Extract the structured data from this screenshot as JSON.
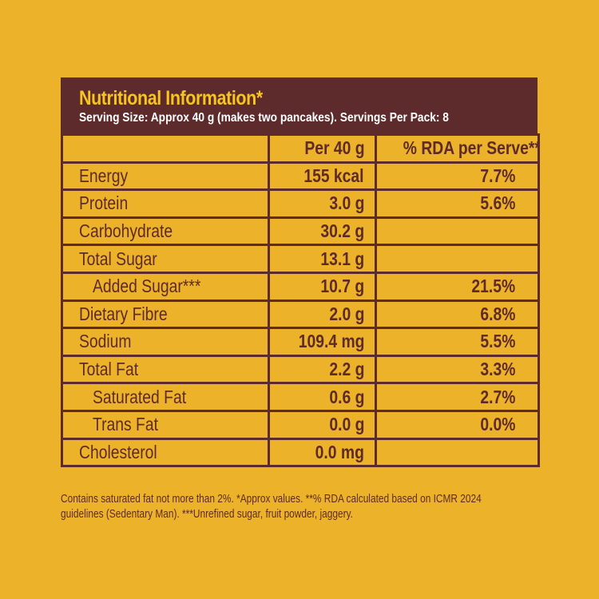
{
  "header": {
    "title": "Nutritional Information*",
    "subtitle": "Serving Size: Approx 40 g (makes two pancakes). Servings Per Pack: 8"
  },
  "columns": [
    "",
    "Per 40 g",
    "% RDA per Serve**"
  ],
  "rows": [
    {
      "nutrient": "Energy",
      "per_40g": "155 kcal",
      "rda": "7.7%",
      "indent": false
    },
    {
      "nutrient": "Protein",
      "per_40g": "3.0 g",
      "rda": "5.6%",
      "indent": false
    },
    {
      "nutrient": "Carbohydrate",
      "per_40g": "30.2 g",
      "rda": "",
      "indent": false
    },
    {
      "nutrient": "Total Sugar",
      "per_40g": "13.1 g",
      "rda": "",
      "indent": false
    },
    {
      "nutrient": "Added Sugar***",
      "per_40g": "10.7 g",
      "rda": "21.5%",
      "indent": true
    },
    {
      "nutrient": "Dietary Fibre",
      "per_40g": "2.0 g",
      "rda": "6.8%",
      "indent": false
    },
    {
      "nutrient": "Sodium",
      "per_40g": "109.4 mg",
      "rda": "5.5%",
      "indent": false
    },
    {
      "nutrient": "Total Fat",
      "per_40g": "2.2 g",
      "rda": "3.3%",
      "indent": false
    },
    {
      "nutrient": "Saturated Fat",
      "per_40g": "0.6 g",
      "rda": "2.7%",
      "indent": true
    },
    {
      "nutrient": "Trans Fat",
      "per_40g": "0.0 g",
      "rda": "0.0%",
      "indent": true
    },
    {
      "nutrient": "Cholesterol",
      "per_40g": "0.0 mg",
      "rda": "",
      "indent": false
    }
  ],
  "footnote": {
    "line1": "Contains saturated fat not more than 2%. *Approx values. **% RDA calculated based on ICMR 2024",
    "line2": "guidelines (Sedentary Man).  ***Unrefined sugar, fruit powder, jaggery."
  },
  "colors": {
    "background": "#ecb22a",
    "header_bg": "#5d2b2c",
    "title": "#f7c51e",
    "text": "#5e2a2a"
  }
}
